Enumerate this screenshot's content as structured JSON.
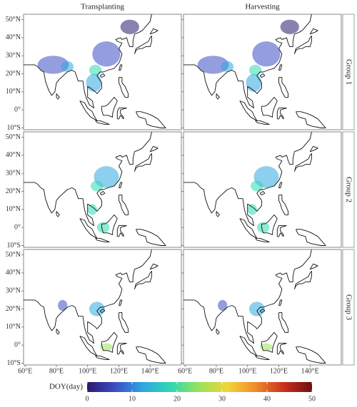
{
  "columns": [
    "Transplanting",
    "Harvesting"
  ],
  "rows": [
    "Group 1",
    "Group 2",
    "Group 3"
  ],
  "map": {
    "xlim": [
      59,
      160
    ],
    "ylim": [
      -11,
      53
    ],
    "xticks": [
      {
        "value": 60,
        "label": "60°E"
      },
      {
        "value": 80,
        "label": "80°E"
      },
      {
        "value": 100,
        "label": "100°E"
      },
      {
        "value": 120,
        "label": "120°E"
      },
      {
        "value": 140,
        "label": "140°E"
      }
    ],
    "yticks": [
      {
        "value": 50,
        "label": "50°N"
      },
      {
        "value": 40,
        "label": "40°N"
      },
      {
        "value": 30,
        "label": "30°N"
      },
      {
        "value": 20,
        "label": "20°N"
      },
      {
        "value": 10,
        "label": "10°N"
      },
      {
        "value": 0,
        "label": "0°"
      },
      {
        "value": -10,
        "label": "10°S"
      }
    ]
  },
  "colorbar": {
    "title": "DOY(day)",
    "lim": [
      0,
      50
    ],
    "ticks": [
      0,
      10,
      20,
      30,
      40,
      50
    ],
    "colors": [
      "#2b1a6e",
      "#3a4fc4",
      "#2fa7e0",
      "#2fd8b0",
      "#9be25a",
      "#f2d43a",
      "#f08a2a",
      "#c8301c",
      "#6e0f0f"
    ]
  }
}
